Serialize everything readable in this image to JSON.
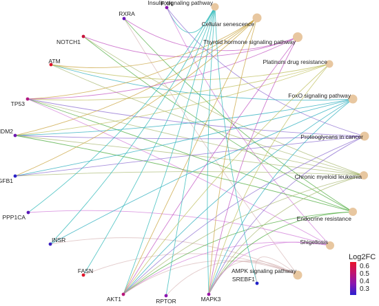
{
  "genes": [
    {
      "name": "PXN",
      "log2fc": 0.4,
      "color": "#8a16b0"
    },
    {
      "name": "RXRA",
      "log2fc": 0.38,
      "color": "#6a18b8"
    },
    {
      "name": "NOTCH1",
      "log2fc": 0.56,
      "color": "#c8143c"
    },
    {
      "name": "ATM",
      "log2fc": 0.6,
      "color": "#e0142a"
    },
    {
      "name": "TP53",
      "log2fc": 0.48,
      "color": "#b01880"
    },
    {
      "name": "MDM2",
      "log2fc": 0.36,
      "color": "#6f1ab0"
    },
    {
      "name": "TGFB1",
      "log2fc": 0.28,
      "color": "#2a22c8"
    },
    {
      "name": "PPP1CA",
      "log2fc": 0.34,
      "color": "#5a18b8"
    },
    {
      "name": "INSR",
      "log2fc": 0.3,
      "color": "#3a20c0"
    },
    {
      "name": "FASN",
      "log2fc": 0.62,
      "color": "#e0142a"
    },
    {
      "name": "AKT1",
      "log2fc": 0.5,
      "color": "#b8147a"
    },
    {
      "name": "RPTOR",
      "log2fc": 0.4,
      "color": "#8a16b0"
    },
    {
      "name": "MAPK3",
      "log2fc": 0.42,
      "color": "#9a16a8"
    },
    {
      "name": "SREBF1",
      "log2fc": 0.28,
      "color": "#2020c8"
    }
  ],
  "pathways": [
    {
      "name": "Insulin signaling pathway",
      "color": "#25b5b5"
    },
    {
      "name": "Cellular senescence",
      "color": "#c8a23a"
    },
    {
      "name": "Thyroid hormone signaling pathway",
      "color": "#c04fc0"
    },
    {
      "name": "Platinum drug resistance",
      "color": "#bdbd5a"
    },
    {
      "name": "FoxO signaling pathway",
      "color": "#22aabb"
    },
    {
      "name": "Proteoglycans in cancer",
      "color": "#8a6ad0"
    },
    {
      "name": "Chronic myeloid leukemia",
      "color": "#a8b870"
    },
    {
      "name": "Endocrine resistance",
      "color": "#4aaa3a"
    },
    {
      "name": "Shigellosis",
      "color": "#d07ad8"
    },
    {
      "name": "AMPK signaling pathway",
      "color": "#d8b8b8"
    }
  ],
  "edges": [
    [
      "PXN",
      "Insulin signaling pathway"
    ],
    [
      "PXN",
      "Shigellosis"
    ],
    [
      "PXN",
      "Proteoglycans in cancer"
    ],
    [
      "RXRA",
      "Thyroid hormone signaling pathway"
    ],
    [
      "RXRA",
      "AMPK signaling pathway"
    ],
    [
      "RXRA",
      "Endocrine resistance"
    ],
    [
      "NOTCH1",
      "Thyroid hormone signaling pathway"
    ],
    [
      "NOTCH1",
      "Endocrine resistance"
    ],
    [
      "NOTCH1",
      "Chronic myeloid leukemia"
    ],
    [
      "ATM",
      "Cellular senescence"
    ],
    [
      "ATM",
      "FoxO signaling pathway"
    ],
    [
      "ATM",
      "Platinum drug resistance"
    ],
    [
      "ATM",
      "Chronic myeloid leukemia"
    ],
    [
      "TP53",
      "Cellular senescence"
    ],
    [
      "TP53",
      "Platinum drug resistance"
    ],
    [
      "TP53",
      "Thyroid hormone signaling pathway"
    ],
    [
      "TP53",
      "Chronic myeloid leukemia"
    ],
    [
      "TP53",
      "Endocrine resistance"
    ],
    [
      "TP53",
      "Shigellosis"
    ],
    [
      "TP53",
      "Proteoglycans in cancer"
    ],
    [
      "MDM2",
      "Cellular senescence"
    ],
    [
      "MDM2",
      "Proteoglycans in cancer"
    ],
    [
      "MDM2",
      "Chronic myeloid leukemia"
    ],
    [
      "MDM2",
      "FoxO signaling pathway"
    ],
    [
      "MDM2",
      "Endocrine resistance"
    ],
    [
      "MDM2",
      "Platinum drug resistance"
    ],
    [
      "TGFB1",
      "Cellular senescence"
    ],
    [
      "TGFB1",
      "FoxO signaling pathway"
    ],
    [
      "TGFB1",
      "Chronic myeloid leukemia"
    ],
    [
      "TGFB1",
      "Proteoglycans in cancer"
    ],
    [
      "PPP1CA",
      "Insulin signaling pathway"
    ],
    [
      "PPP1CA",
      "Shigellosis"
    ],
    [
      "INSR",
      "Insulin signaling pathway"
    ],
    [
      "INSR",
      "FoxO signaling pathway"
    ],
    [
      "INSR",
      "AMPK signaling pathway"
    ],
    [
      "FASN",
      "Insulin signaling pathway"
    ],
    [
      "FASN",
      "AMPK signaling pathway"
    ],
    [
      "AKT1",
      "Insulin signaling pathway"
    ],
    [
      "AKT1",
      "Cellular senescence"
    ],
    [
      "AKT1",
      "Thyroid hormone signaling pathway"
    ],
    [
      "AKT1",
      "Platinum drug resistance"
    ],
    [
      "AKT1",
      "FoxO signaling pathway"
    ],
    [
      "AKT1",
      "Proteoglycans in cancer"
    ],
    [
      "AKT1",
      "Chronic myeloid leukemia"
    ],
    [
      "AKT1",
      "Endocrine resistance"
    ],
    [
      "AKT1",
      "Shigellosis"
    ],
    [
      "AKT1",
      "AMPK signaling pathway"
    ],
    [
      "RPTOR",
      "Insulin signaling pathway"
    ],
    [
      "RPTOR",
      "AMPK signaling pathway"
    ],
    [
      "MAPK3",
      "Insulin signaling pathway"
    ],
    [
      "MAPK3",
      "Cellular senescence"
    ],
    [
      "MAPK3",
      "Thyroid hormone signaling pathway"
    ],
    [
      "MAPK3",
      "Platinum drug resistance"
    ],
    [
      "MAPK3",
      "FoxO signaling pathway"
    ],
    [
      "MAPK3",
      "Proteoglycans in cancer"
    ],
    [
      "MAPK3",
      "Chronic myeloid leukemia"
    ],
    [
      "MAPK3",
      "Endocrine resistance"
    ],
    [
      "MAPK3",
      "Shigellosis"
    ],
    [
      "MAPK3",
      "AMPK signaling pathway"
    ],
    [
      "SREBF1",
      "Insulin signaling pathway"
    ],
    [
      "SREBF1",
      "AMPK signaling pathway"
    ]
  ],
  "legend": {
    "title": "Log2FC",
    "ticks": [
      "0.6",
      "0.5",
      "0.4",
      "0.3"
    ],
    "gradient": [
      "#e8142a",
      "#c01470",
      "#8a16b0",
      "#2b20d0"
    ]
  }
}
